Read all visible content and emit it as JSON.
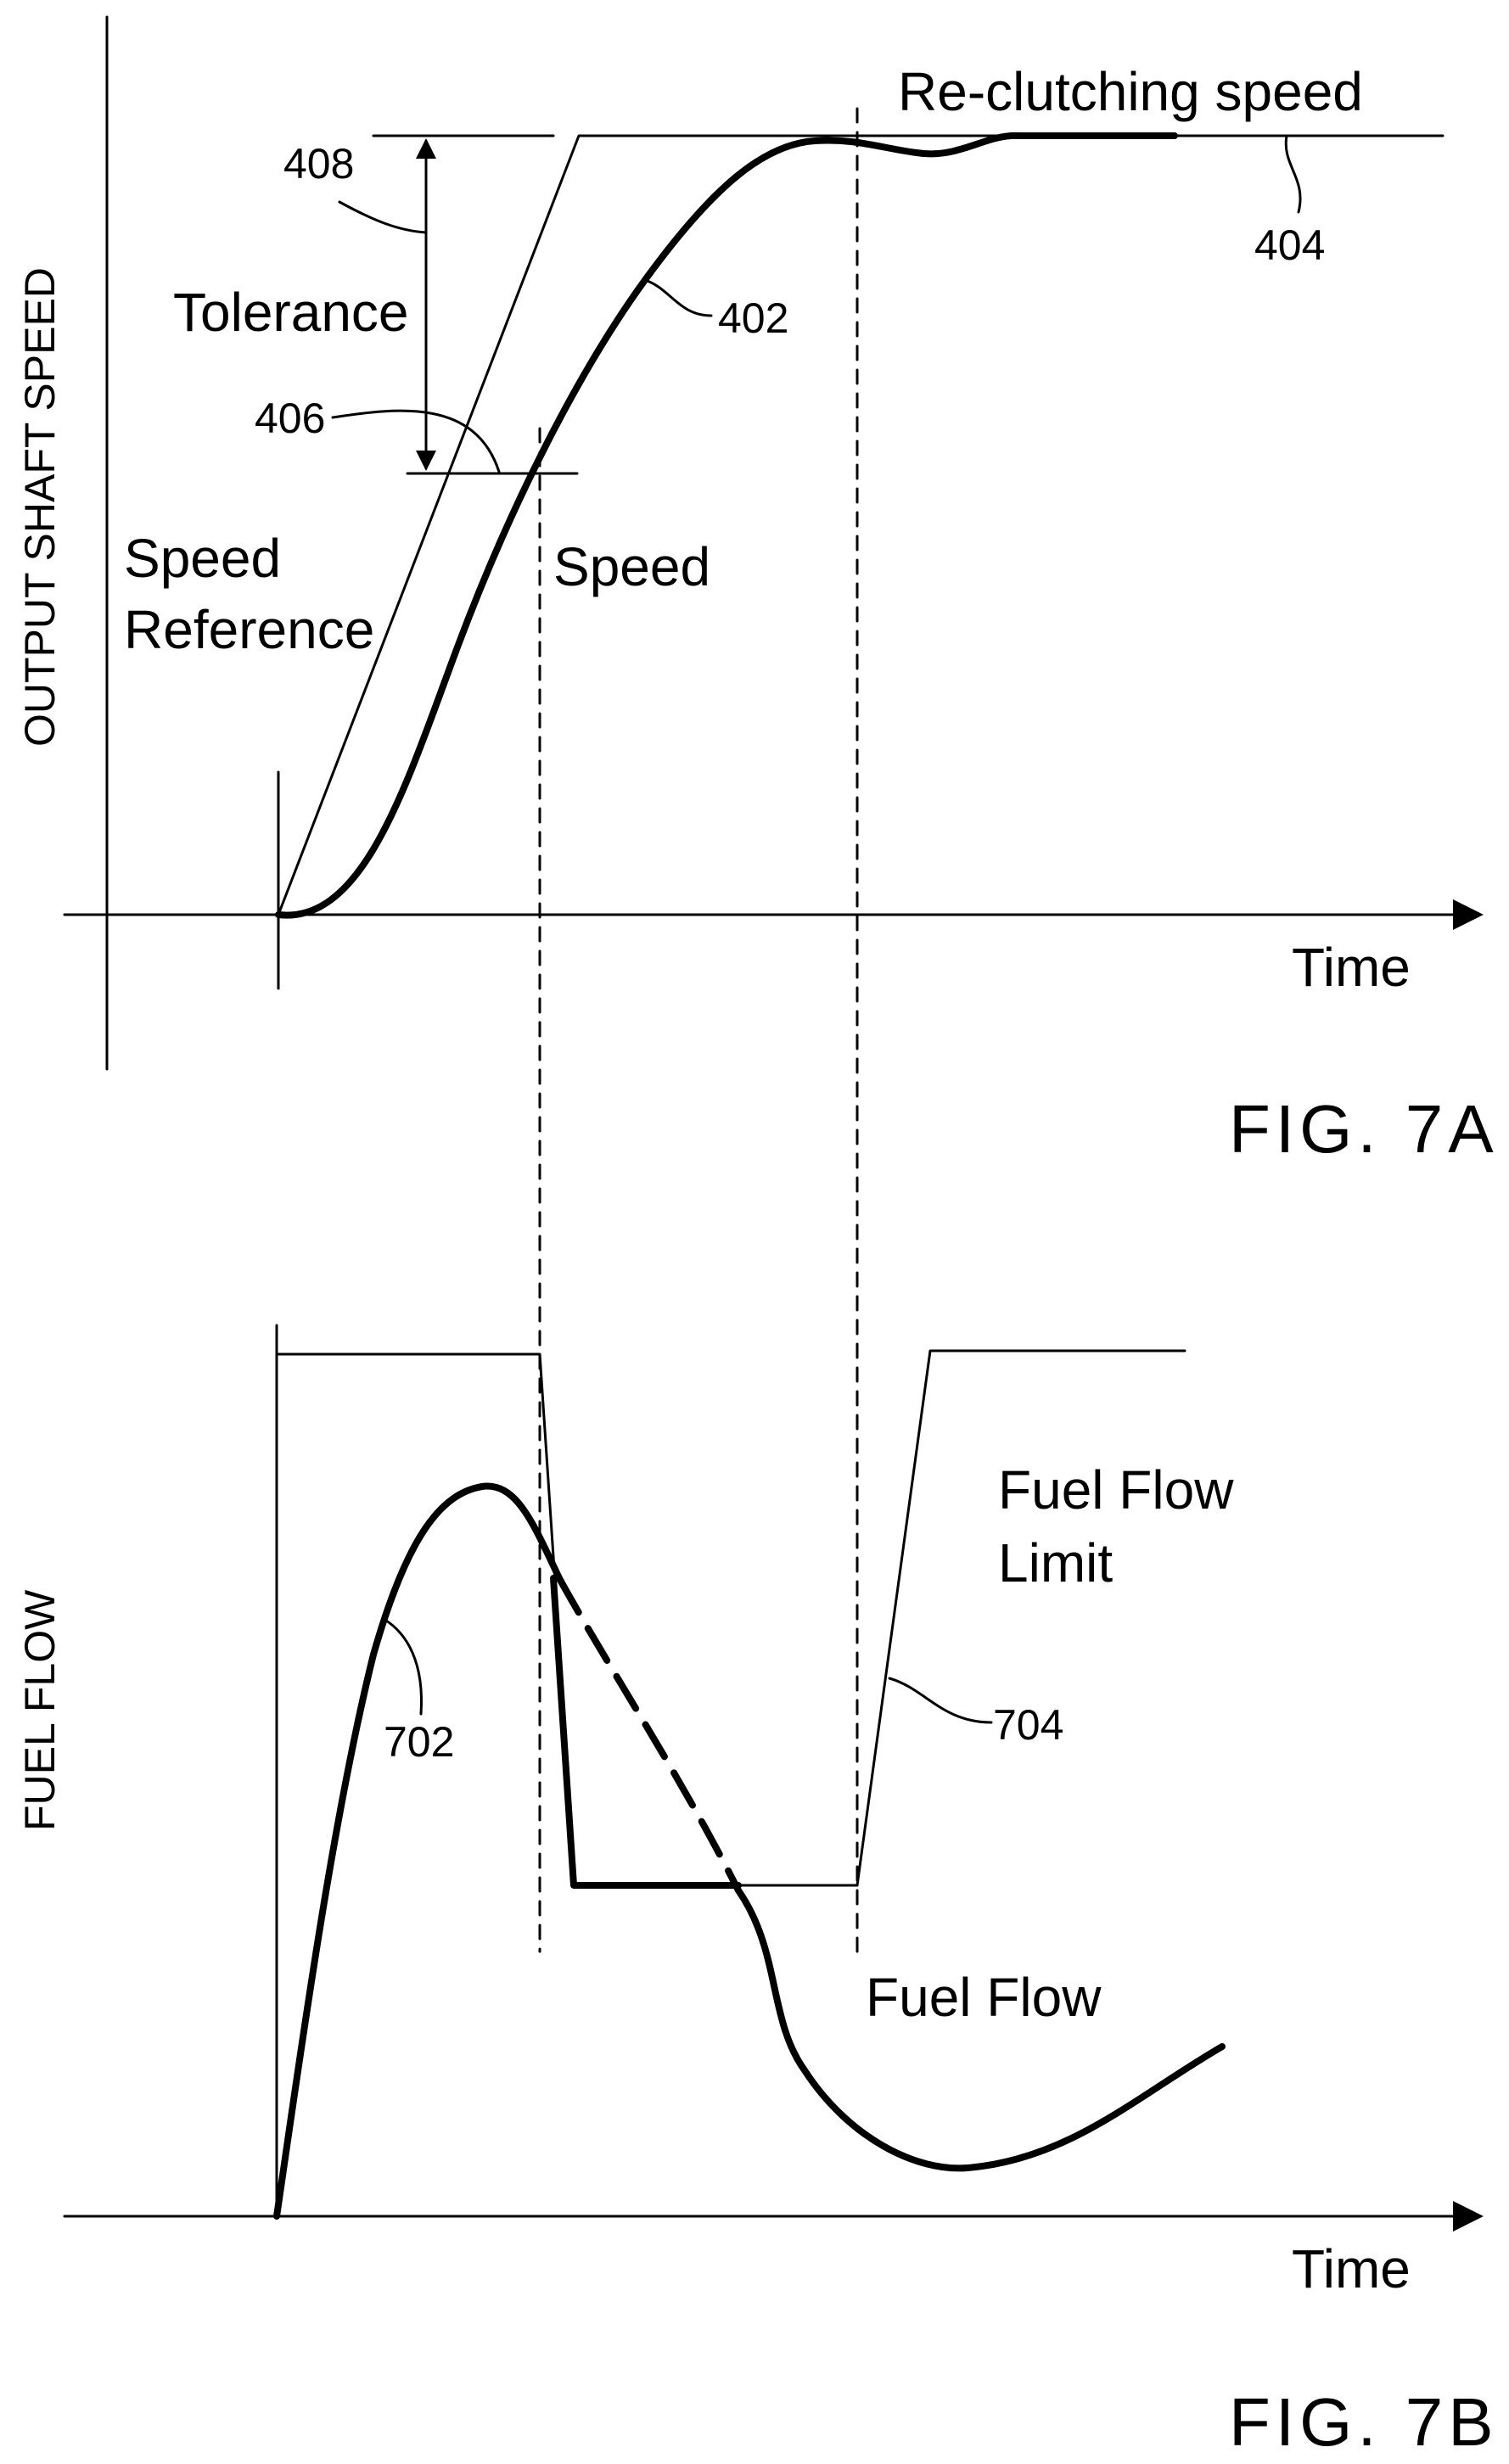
{
  "fig_7a": {
    "caption": "FIG. 7A",
    "y_axis_label": "OUTPUT SHAFT SPEED",
    "x_axis_label": "Time",
    "labels": {
      "reclutching_speed": "Re-clutching speed",
      "tolerance": "Tolerance",
      "speed_reference_line1": "Speed",
      "speed_reference_line2": "Reference",
      "speed": "Speed"
    },
    "reference_numerals": {
      "tolerance_top": "408",
      "tolerance_bottom": "406",
      "speed_curve": "402",
      "reclutching_line": "404"
    }
  },
  "fig_7b": {
    "caption": "FIG. 7B",
    "y_axis_label": "FUEL FLOW",
    "x_axis_label": "Time",
    "labels": {
      "fuel_flow_limit_line1": "Fuel Flow",
      "fuel_flow_limit_line2": "Limit",
      "fuel_flow": "Fuel Flow"
    },
    "reference_numerals": {
      "fuel_flow_curve": "702",
      "fuel_flow_limit_curve": "704"
    }
  }
}
